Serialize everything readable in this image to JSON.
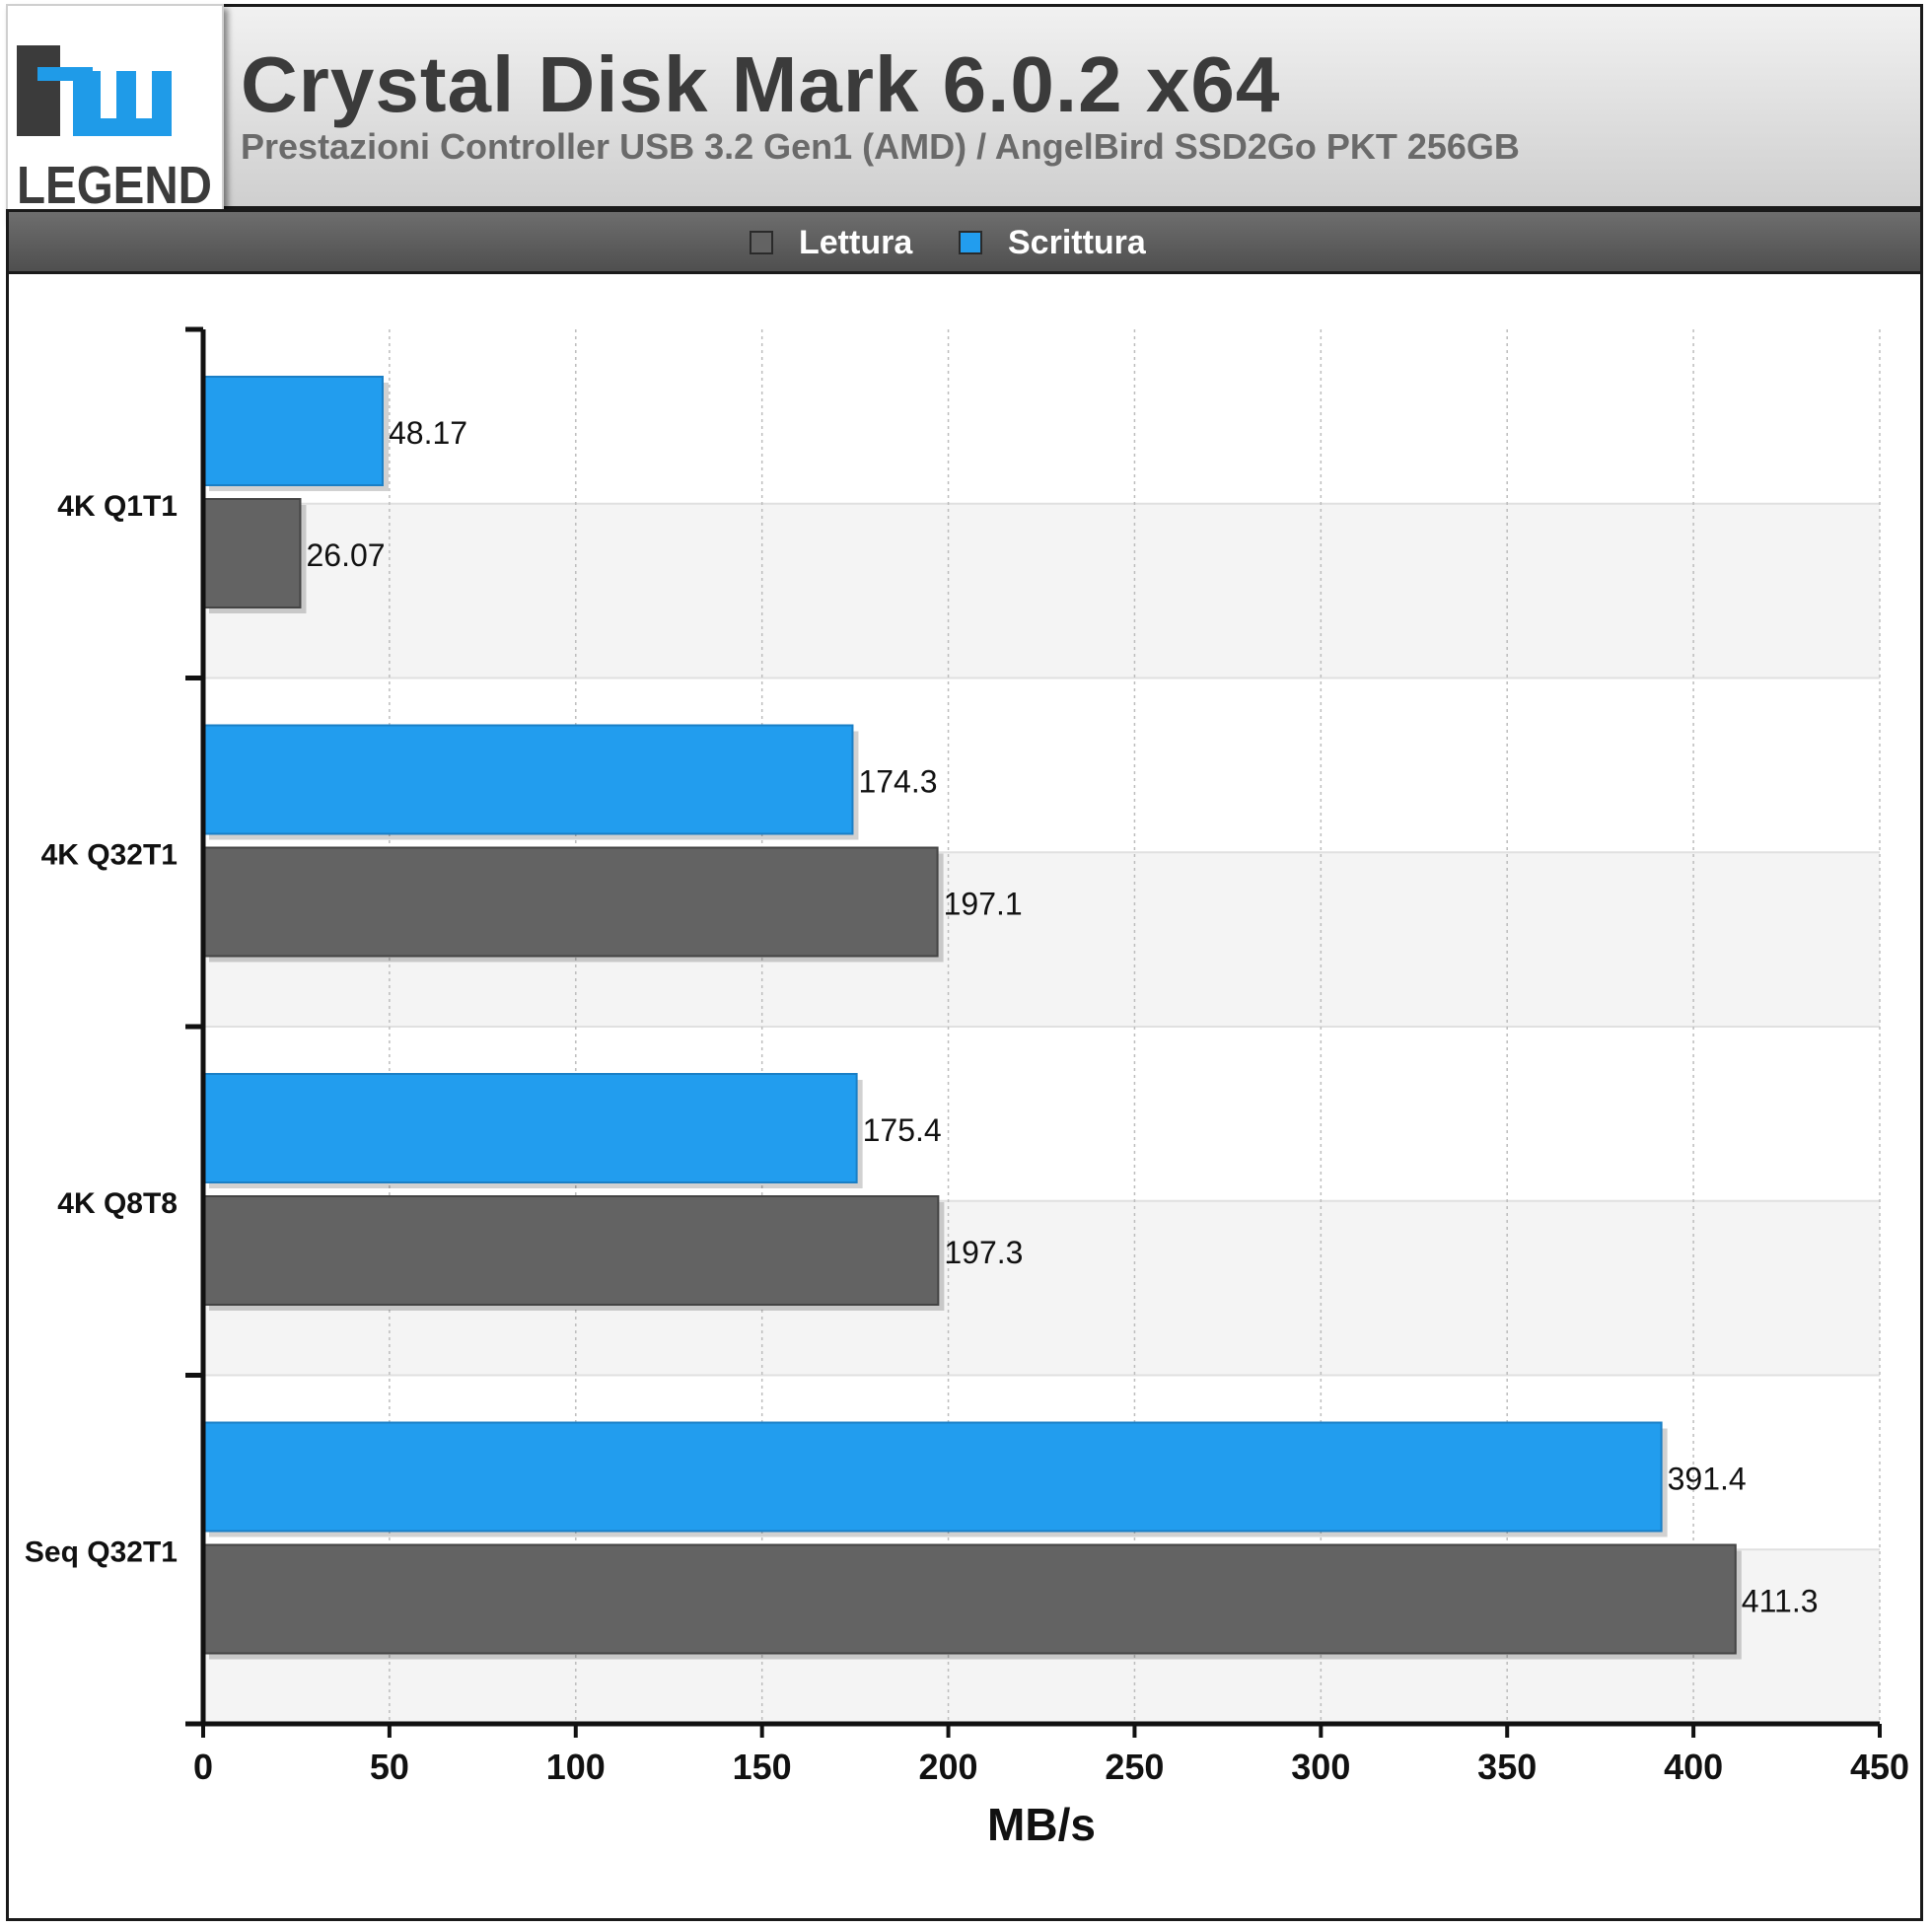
{
  "header": {
    "logo_text": "hw LEGEND",
    "title": "Crystal Disk Mark 6.0.2 x64",
    "subtitle": "Prestazioni Controller USB 3.2 Gen1 (AMD) / AngelBird SSD2Go PKT 256GB"
  },
  "legend": {
    "items": [
      {
        "label": "Lettura",
        "color": "#636363"
      },
      {
        "label": "Scrittura",
        "color": "#229dee"
      }
    ]
  },
  "chart_data": {
    "type": "bar",
    "orientation": "horizontal",
    "categories": [
      "4K Q1T1",
      "4K Q32T1",
      "4K Q8T8",
      "Seq Q32T1"
    ],
    "series": [
      {
        "name": "Scrittura",
        "color": "#229dee",
        "values": [
          48.17,
          174.3,
          175.4,
          391.4
        ],
        "labels": [
          "48.17",
          "174.3",
          "175.4",
          "391.4"
        ]
      },
      {
        "name": "Lettura",
        "color": "#636363",
        "values": [
          26.07,
          197.1,
          197.3,
          411.3
        ],
        "labels": [
          "26.07",
          "197.1",
          "197.3",
          "411.3"
        ]
      }
    ],
    "xlabel": "MB/s",
    "ylabel": "",
    "xlim": [
      0,
      450
    ],
    "xticks": [
      "0",
      "50",
      "100",
      "150",
      "200",
      "250",
      "300",
      "350",
      "400",
      "450"
    ],
    "grid": true,
    "legend_position": "top"
  }
}
